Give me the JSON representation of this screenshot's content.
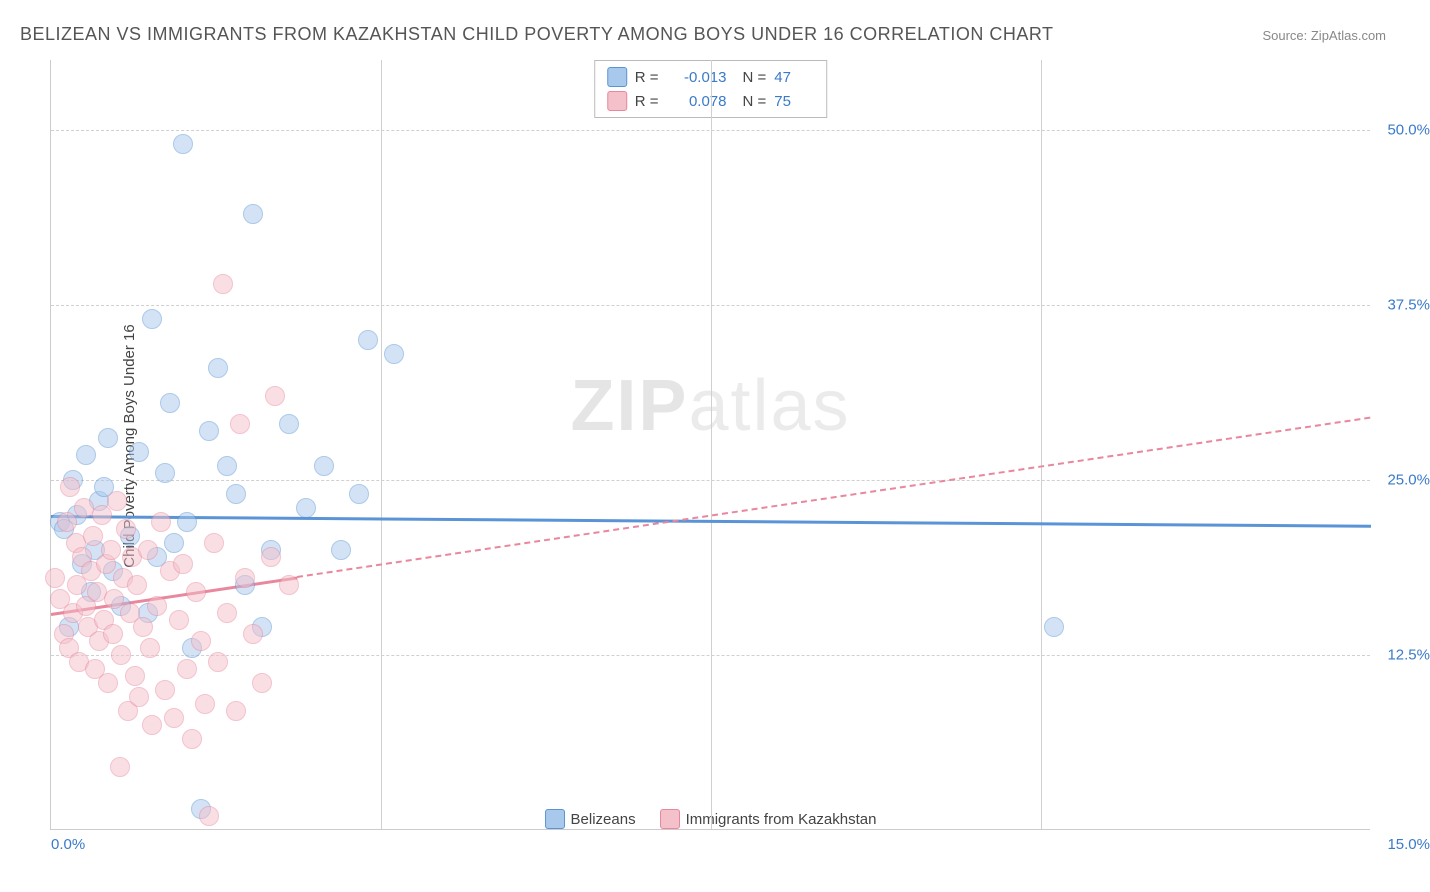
{
  "title": "BELIZEAN VS IMMIGRANTS FROM KAZAKHSTAN CHILD POVERTY AMONG BOYS UNDER 16 CORRELATION CHART",
  "source": "Source: ZipAtlas.com",
  "y_axis_label": "Child Poverty Among Boys Under 16",
  "watermark_bold": "ZIP",
  "watermark_thin": "atlas",
  "chart": {
    "type": "scatter",
    "xlim": [
      0,
      15
    ],
    "ylim": [
      0,
      55
    ],
    "x_ticks": [
      0,
      15
    ],
    "x_tick_labels": [
      "0.0%",
      "15.0%"
    ],
    "x_gridlines": [
      3.75,
      7.5,
      11.25
    ],
    "y_ticks": [
      12.5,
      25.0,
      37.5,
      50.0
    ],
    "y_tick_labels": [
      "12.5%",
      "25.0%",
      "37.5%",
      "50.0%"
    ],
    "background_color": "#ffffff",
    "grid_color": "#d0d0d0",
    "axis_color": "#cccccc",
    "point_radius": 10,
    "point_opacity": 0.5,
    "series": [
      {
        "name": "Belizeans",
        "fill": "#a8c8ec",
        "stroke": "#5a94d6",
        "r": "-0.013",
        "n": "47",
        "trend": {
          "y_at_xmin": 22.5,
          "y_at_xmax": 21.8,
          "solid_until_x": 15.0
        },
        "points": [
          [
            0.1,
            22.0
          ],
          [
            0.15,
            21.5
          ],
          [
            0.2,
            14.5
          ],
          [
            0.25,
            25.0
          ],
          [
            0.3,
            22.5
          ],
          [
            0.35,
            19.0
          ],
          [
            0.4,
            26.8
          ],
          [
            0.45,
            17.0
          ],
          [
            0.5,
            20.0
          ],
          [
            0.55,
            23.5
          ],
          [
            0.6,
            24.5
          ],
          [
            0.65,
            28.0
          ],
          [
            0.7,
            18.5
          ],
          [
            0.8,
            16.0
          ],
          [
            0.9,
            21.0
          ],
          [
            1.0,
            27.0
          ],
          [
            1.1,
            15.5
          ],
          [
            1.15,
            36.5
          ],
          [
            1.2,
            19.5
          ],
          [
            1.3,
            25.5
          ],
          [
            1.35,
            30.5
          ],
          [
            1.4,
            20.5
          ],
          [
            1.5,
            49.0
          ],
          [
            1.55,
            22.0
          ],
          [
            1.6,
            13.0
          ],
          [
            1.7,
            1.5
          ],
          [
            1.8,
            28.5
          ],
          [
            1.9,
            33.0
          ],
          [
            2.0,
            26.0
          ],
          [
            2.1,
            24.0
          ],
          [
            2.2,
            17.5
          ],
          [
            2.3,
            44.0
          ],
          [
            2.4,
            14.5
          ],
          [
            2.5,
            20.0
          ],
          [
            2.7,
            29.0
          ],
          [
            2.9,
            23.0
          ],
          [
            3.1,
            26.0
          ],
          [
            3.3,
            20.0
          ],
          [
            3.5,
            24.0
          ],
          [
            3.6,
            35.0
          ],
          [
            3.9,
            34.0
          ],
          [
            11.4,
            14.5
          ]
        ]
      },
      {
        "name": "Immigrants from Kazakhstan",
        "fill": "#f4c0ca",
        "stroke": "#e8879d",
        "r": "0.078",
        "n": "75",
        "trend": {
          "y_at_xmin": 15.5,
          "y_at_xmax": 29.5,
          "solid_until_x": 2.8
        },
        "points": [
          [
            0.05,
            18.0
          ],
          [
            0.1,
            16.5
          ],
          [
            0.15,
            14.0
          ],
          [
            0.18,
            22.0
          ],
          [
            0.2,
            13.0
          ],
          [
            0.22,
            24.5
          ],
          [
            0.25,
            15.5
          ],
          [
            0.28,
            20.5
          ],
          [
            0.3,
            17.5
          ],
          [
            0.32,
            12.0
          ],
          [
            0.35,
            19.5
          ],
          [
            0.38,
            23.0
          ],
          [
            0.4,
            16.0
          ],
          [
            0.42,
            14.5
          ],
          [
            0.45,
            18.5
          ],
          [
            0.48,
            21.0
          ],
          [
            0.5,
            11.5
          ],
          [
            0.52,
            17.0
          ],
          [
            0.55,
            13.5
          ],
          [
            0.58,
            22.5
          ],
          [
            0.6,
            15.0
          ],
          [
            0.62,
            19.0
          ],
          [
            0.65,
            10.5
          ],
          [
            0.68,
            20.0
          ],
          [
            0.7,
            14.0
          ],
          [
            0.72,
            16.5
          ],
          [
            0.75,
            23.5
          ],
          [
            0.78,
            4.5
          ],
          [
            0.8,
            12.5
          ],
          [
            0.82,
            18.0
          ],
          [
            0.85,
            21.5
          ],
          [
            0.88,
            8.5
          ],
          [
            0.9,
            15.5
          ],
          [
            0.92,
            19.5
          ],
          [
            0.95,
            11.0
          ],
          [
            0.98,
            17.5
          ],
          [
            1.0,
            9.5
          ],
          [
            1.05,
            14.5
          ],
          [
            1.1,
            20.0
          ],
          [
            1.12,
            13.0
          ],
          [
            1.15,
            7.5
          ],
          [
            1.2,
            16.0
          ],
          [
            1.25,
            22.0
          ],
          [
            1.3,
            10.0
          ],
          [
            1.35,
            18.5
          ],
          [
            1.4,
            8.0
          ],
          [
            1.45,
            15.0
          ],
          [
            1.5,
            19.0
          ],
          [
            1.55,
            11.5
          ],
          [
            1.6,
            6.5
          ],
          [
            1.65,
            17.0
          ],
          [
            1.7,
            13.5
          ],
          [
            1.75,
            9.0
          ],
          [
            1.8,
            1.0
          ],
          [
            1.85,
            20.5
          ],
          [
            1.9,
            12.0
          ],
          [
            1.95,
            39.0
          ],
          [
            2.0,
            15.5
          ],
          [
            2.1,
            8.5
          ],
          [
            2.15,
            29.0
          ],
          [
            2.2,
            18.0
          ],
          [
            2.3,
            14.0
          ],
          [
            2.4,
            10.5
          ],
          [
            2.5,
            19.5
          ],
          [
            2.55,
            31.0
          ],
          [
            2.7,
            17.5
          ]
        ]
      }
    ]
  },
  "stats_labels": {
    "r_prefix": "R =",
    "n_prefix": "N ="
  }
}
